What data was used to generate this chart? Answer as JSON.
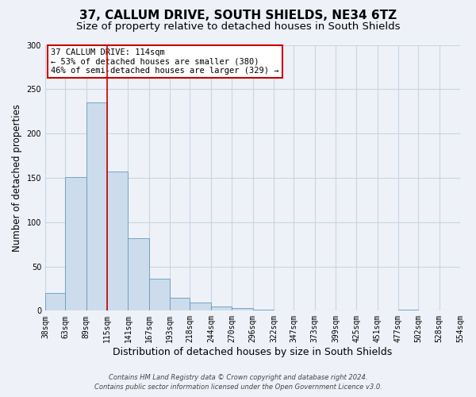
{
  "title": "37, CALLUM DRIVE, SOUTH SHIELDS, NE34 6TZ",
  "subtitle": "Size of property relative to detached houses in South Shields",
  "xlabel": "Distribution of detached houses by size in South Shields",
  "ylabel": "Number of detached properties",
  "footer_line1": "Contains HM Land Registry data © Crown copyright and database right 2024.",
  "footer_line2": "Contains public sector information licensed under the Open Government Licence v3.0.",
  "bin_edges": [
    38,
    63,
    89,
    115,
    141,
    167,
    193,
    218,
    244,
    270,
    296,
    322,
    347,
    373,
    399,
    425,
    451,
    477,
    502,
    528,
    554
  ],
  "bar_heights": [
    20,
    151,
    235,
    157,
    82,
    36,
    15,
    9,
    5,
    3,
    1,
    0,
    0,
    0,
    0,
    0,
    0,
    1,
    0,
    0
  ],
  "bar_color": "#ccdcec",
  "bar_edgecolor": "#6699bb",
  "grid_color": "#c8d4e4",
  "background_color": "#eef2f8",
  "vline_x": 115,
  "vline_color": "#cc0000",
  "annotation_text_line1": "37 CALLUM DRIVE: 114sqm",
  "annotation_text_line2": "← 53% of detached houses are smaller (380)",
  "annotation_text_line3": "46% of semi-detached houses are larger (329) →",
  "annotation_box_color": "#cc0000",
  "ylim": [
    0,
    300
  ],
  "yticks": [
    0,
    50,
    100,
    150,
    200,
    250,
    300
  ],
  "title_fontsize": 11,
  "subtitle_fontsize": 9.5,
  "xlabel_fontsize": 9,
  "ylabel_fontsize": 8.5,
  "tick_fontsize": 7,
  "annot_fontsize": 7.5,
  "footer_fontsize": 6
}
